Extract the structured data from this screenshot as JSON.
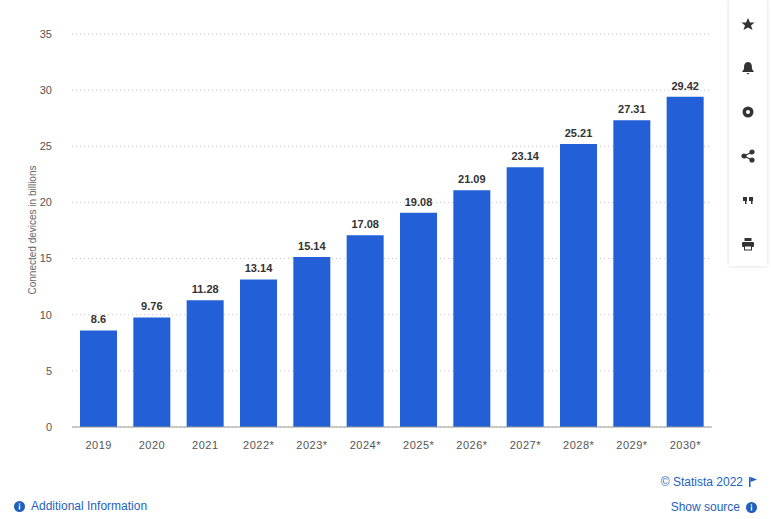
{
  "chart_data": {
    "type": "bar",
    "ylabel": "Connected devices in billions",
    "categories": [
      "2019",
      "2020",
      "2021",
      "2022*",
      "2023*",
      "2024*",
      "2025*",
      "2026*",
      "2027*",
      "2028*",
      "2029*",
      "2030*"
    ],
    "values": [
      8.6,
      9.76,
      11.28,
      13.14,
      15.14,
      17.08,
      19.08,
      21.09,
      23.14,
      25.21,
      27.31,
      29.42
    ],
    "color": "#2360d8",
    "ylim": [
      0,
      35
    ],
    "yticks": [
      0,
      5,
      10,
      15,
      20,
      25,
      30,
      35
    ],
    "grid": true,
    "data_labels": true,
    "annotations": [
      "© Statista 2022",
      "Additional Information",
      "Show source"
    ]
  }
}
